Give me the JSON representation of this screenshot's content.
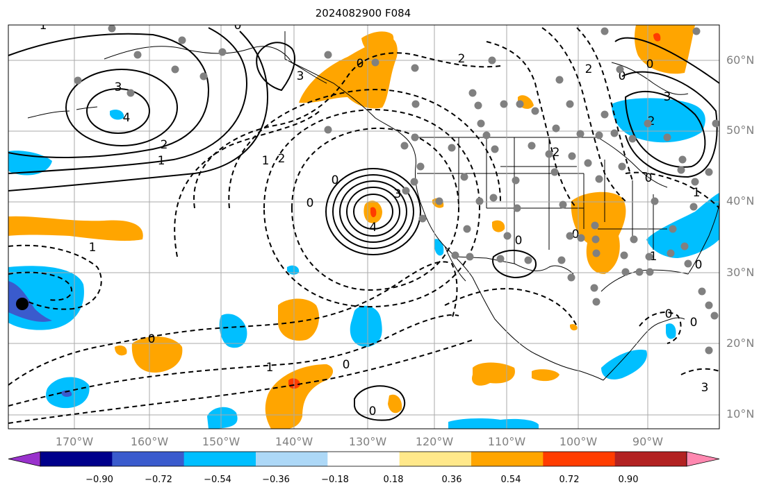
{
  "title": "2024082900 F084",
  "lat_labels": [
    "60°N",
    "50°N",
    "40°N",
    "30°N",
    "20°N",
    "10°N"
  ],
  "lon_labels": [
    "170°W",
    "160°W",
    "150°W",
    "140°W",
    "130°W",
    "120°W",
    "110°W",
    "100°W",
    "90°W"
  ],
  "colorbar": {
    "ticks": [
      "−0.90",
      "−0.72",
      "−0.54",
      "−0.36",
      "−0.18",
      "0.18",
      "0.36",
      "0.54",
      "0.72",
      "0.90"
    ],
    "colors": [
      "#9932cc",
      "#00008b",
      "#3a5bcd",
      "#00bfff",
      "#add8f7",
      "#ffffff",
      "#ffe88a",
      "#ffa500",
      "#ff3c00",
      "#b22222",
      "#ff88b0"
    ]
  },
  "contour_labels": [
    "1",
    "3",
    "4",
    "2",
    "1",
    "3",
    "0",
    "0",
    "1",
    "2",
    "0",
    "3",
    "4",
    "1",
    "0",
    "2",
    "2",
    "0",
    "0",
    "2",
    "3",
    "2",
    "0",
    "1",
    "0",
    "1",
    "0",
    "0",
    "0",
    "0",
    "0",
    "0",
    "1",
    "0",
    "3"
  ]
}
